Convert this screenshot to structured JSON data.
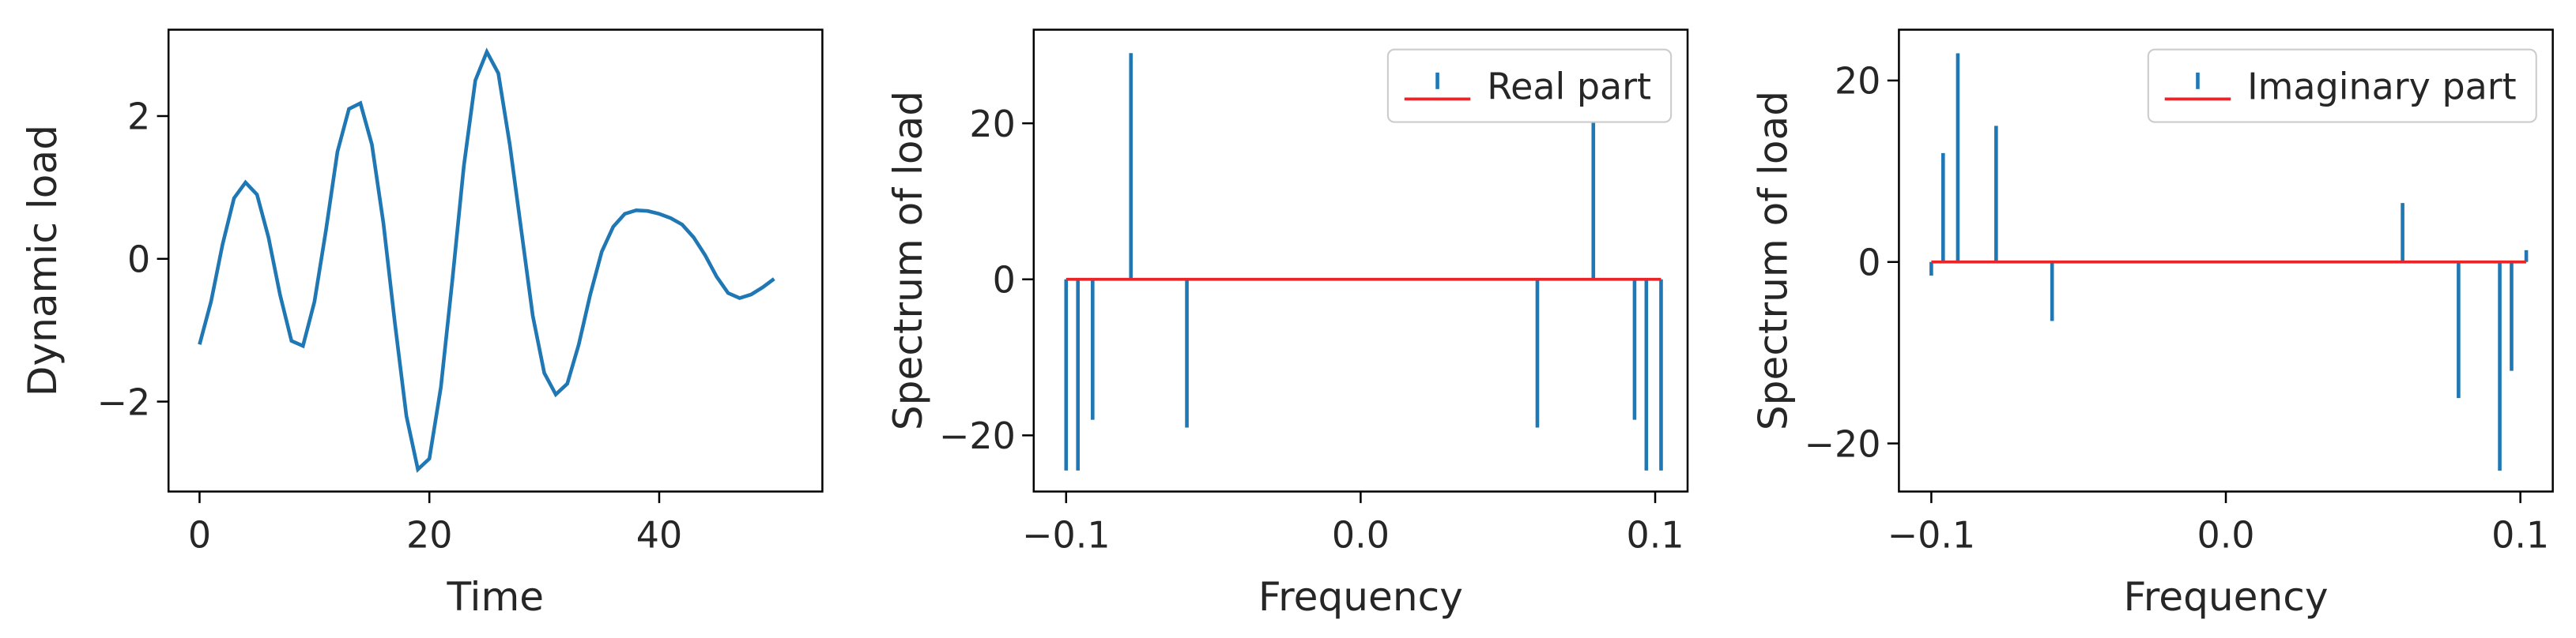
{
  "chart_data": [
    {
      "type": "line",
      "xlabel": "Time",
      "ylabel": "Dynamic load",
      "color": "#1f77b4",
      "x": [
        0,
        1,
        2,
        3,
        4,
        5,
        6,
        7,
        8,
        9,
        10,
        11,
        12,
        13,
        14,
        15,
        16,
        17,
        18,
        19,
        20,
        21,
        22,
        23,
        24,
        25,
        26,
        27,
        28,
        29,
        30,
        31,
        32,
        33,
        34,
        35,
        36,
        37,
        38,
        39,
        40,
        41,
        42,
        43,
        44,
        45,
        46,
        47,
        48,
        49,
        50
      ],
      "values": [
        -1.2,
        -0.6,
        0.2,
        0.85,
        1.07,
        0.9,
        0.3,
        -0.5,
        -1.15,
        -1.22,
        -0.6,
        0.4,
        1.5,
        2.1,
        2.18,
        1.6,
        0.5,
        -0.9,
        -2.2,
        -2.95,
        -2.8,
        -1.8,
        -0.3,
        1.3,
        2.5,
        2.9,
        2.6,
        1.6,
        0.4,
        -0.8,
        -1.6,
        -1.9,
        -1.75,
        -1.2,
        -0.5,
        0.1,
        0.45,
        0.63,
        0.68,
        0.67,
        0.63,
        0.57,
        0.48,
        0.3,
        0.05,
        -0.25,
        -0.48,
        -0.55,
        -0.5,
        -0.4,
        -0.28
      ],
      "xlim": [
        -2.7,
        54.2
      ],
      "ylim": [
        -3.26,
        3.21
      ],
      "xticks": [
        0,
        20,
        40
      ],
      "yticks": [
        {
          "value": -2,
          "label": "−2"
        },
        0,
        2
      ]
    },
    {
      "type": "stem",
      "xlabel": "Frequency",
      "ylabel": "Spectrum of load",
      "legend": "upper right",
      "baseline_color": "#e8262a",
      "x": [
        -0.1,
        -0.096,
        -0.091,
        -0.078,
        -0.059,
        0.06,
        0.079,
        0.093,
        0.097,
        0.102
      ],
      "series": [
        {
          "name": "Real part",
          "color": "#1f77b4",
          "values": [
            -24.5,
            -24.5,
            -18,
            29,
            -19,
            -19,
            29,
            -18,
            -24.5,
            -24.5
          ]
        }
      ],
      "xlim": [
        -0.111,
        0.111
      ],
      "ylim": [
        -27.2,
        32
      ],
      "xticks": [
        {
          "value": -0.1,
          "label": "−0.1"
        },
        {
          "value": 0,
          "label": "0.0"
        },
        0.1
      ],
      "yticks": [
        {
          "value": -20,
          "label": "−20"
        },
        0,
        20
      ]
    },
    {
      "type": "stem",
      "xlabel": "Frequency",
      "ylabel": "Spectrum of load",
      "legend": "upper right",
      "baseline_color": "#e8262a",
      "x": [
        -0.1,
        -0.096,
        -0.091,
        -0.078,
        -0.059,
        0.06,
        0.079,
        0.093,
        0.097,
        0.102
      ],
      "series": [
        {
          "name": "Imaginary part",
          "color": "#1f77b4",
          "values": [
            -1.5,
            12,
            23,
            15,
            -6.5,
            6.5,
            -15,
            -23,
            -12,
            1.3
          ]
        }
      ],
      "xlim": [
        -0.111,
        0.111
      ],
      "ylim": [
        -25.3,
        25.6
      ],
      "xticks": [
        {
          "value": -0.1,
          "label": "−0.1"
        },
        {
          "value": 0,
          "label": "0.0"
        },
        0.1
      ],
      "yticks": [
        {
          "value": -20,
          "label": "−20"
        },
        0,
        20
      ]
    }
  ]
}
